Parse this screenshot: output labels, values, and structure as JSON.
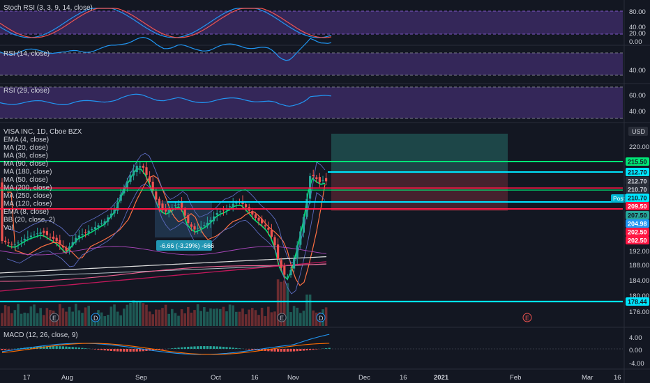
{
  "colors": {
    "background": "#131722",
    "up": "#26a69a",
    "down": "#ef5350",
    "purple_band": "#3b2a63",
    "stoch_k": "#2196f3",
    "stoch_d": "#ef5350",
    "rsi": "#2196f3",
    "green_line": "#00e676",
    "cyan_line": "#00e5ff",
    "red_line": "#ff1744",
    "teal_zone": "#1e4a4a",
    "red_zone": "#4a1e28"
  },
  "panes": {
    "stoch": {
      "title": "Stoch RSI (3, 3, 9, 14, close)",
      "ticks": [
        "80.00",
        "40.00",
        "20.00",
        "0.00"
      ]
    },
    "rsi14": {
      "title": "RSI (14, close)",
      "ticks": [
        "40.00"
      ]
    },
    "rsi29": {
      "title": "RSI (29, close)",
      "ticks": [
        "60.00",
        "40.00"
      ]
    },
    "main": {
      "legend": [
        "VISA INC, 1D, Cboe BZX",
        "EMA (4, close)",
        "MA (20, close)",
        "MA (30, close)",
        "MA (90, close)",
        "MA (180, close)",
        "MA (50, close)",
        "MA (200, close)",
        "MA (250, close)",
        "MA (120, close)",
        "EMA (8, close)",
        "BB (20, close, 2)",
        "Vol"
      ],
      "currency": "USD",
      "ticks": [
        "220.00",
        "192.00",
        "188.00",
        "184.00",
        "180.00",
        "176.00"
      ],
      "price_labels": [
        {
          "text": "215.50",
          "bg": "#00e676",
          "fg": "#131722"
        },
        {
          "text": "212.70",
          "bg": "#00e5ff",
          "fg": "#131722"
        },
        {
          "text": "212.70",
          "bg": "#2a2e39",
          "fg": "#d1d4dc"
        },
        {
          "text": "210.70",
          "bg": "#2a2e39",
          "fg": "#d1d4dc"
        },
        {
          "text": "210.70",
          "bg": "#00e5ff",
          "fg": "#131722"
        },
        {
          "text": "209.50",
          "bg": "#ff1744",
          "fg": "#ffffff"
        },
        {
          "text": "207.50",
          "bg": "#26a69a",
          "fg": "#131722"
        },
        {
          "text": "204.98",
          "bg": "#2196f3",
          "fg": "#ffffff"
        },
        {
          "text": "202.50",
          "bg": "#ff1744",
          "fg": "#ffffff"
        },
        {
          "text": "202.50",
          "bg": "#ff1744",
          "fg": "#ffffff"
        },
        {
          "text": "178.44",
          "bg": "#00e5ff",
          "fg": "#131722"
        }
      ],
      "post_label": "Post",
      "measure_label": "-6.66 (-3.29%) -666",
      "event_markers": [
        "E",
        "D",
        "E",
        "D",
        "E"
      ]
    },
    "macd": {
      "title": "MACD (12, 26, close, 9)",
      "ticks": [
        "4.00",
        "0.00",
        "-4.00"
      ]
    }
  },
  "xaxis": {
    "ticks": [
      "17",
      "Aug",
      "Sep",
      "Oct",
      "16",
      "Nov",
      "Dec",
      "16",
      "2021",
      "Feb",
      "Mar",
      "16"
    ]
  }
}
